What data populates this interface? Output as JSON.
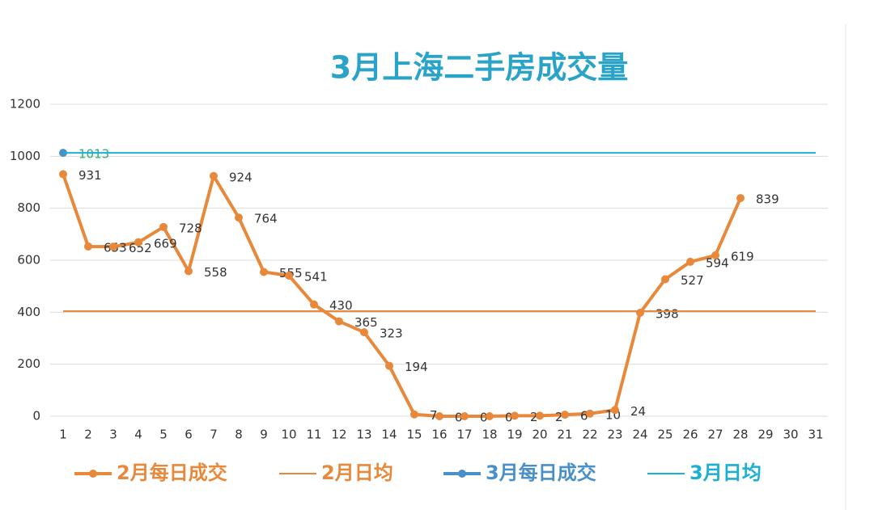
{
  "chart_data": {
    "type": "line",
    "title": "3月上海二手房成交量",
    "x": [
      1,
      2,
      3,
      4,
      5,
      6,
      7,
      8,
      9,
      10,
      11,
      12,
      13,
      14,
      15,
      16,
      17,
      18,
      19,
      20,
      21,
      22,
      23,
      24,
      25,
      26,
      27,
      28,
      29,
      30,
      31
    ],
    "series": [
      {
        "name": "2月每日成交",
        "color": "#e8883a",
        "marker": true,
        "label_color": "#333333",
        "values": [
          931,
          653,
          652,
          669,
          728,
          558,
          924,
          764,
          555,
          541,
          430,
          365,
          323,
          194,
          7,
          0,
          0,
          0,
          2,
          2,
          6,
          10,
          24,
          398,
          527,
          594,
          619,
          839,
          null,
          null,
          null
        ]
      },
      {
        "name": "2月日均",
        "color": "#e8883a",
        "value": 404
      },
      {
        "name": "3月每日成交",
        "color": "#4a90c8",
        "marker": true,
        "label_color": "#2bb070",
        "values": [
          1013,
          null,
          null,
          null,
          null,
          null,
          null,
          null,
          null,
          null,
          null,
          null,
          null,
          null,
          null,
          null,
          null,
          null,
          null,
          null,
          null,
          null,
          null,
          null,
          null,
          null,
          null,
          null,
          null,
          null,
          null
        ]
      },
      {
        "name": "3月日均",
        "color": "#1ab0d0",
        "value": 1013
      }
    ],
    "xlim": [
      1,
      31
    ],
    "ylim": [
      0,
      1200
    ],
    "yticks": [
      0,
      200,
      400,
      600,
      800,
      1000,
      1200
    ],
    "grid": true,
    "legend": "bottom"
  }
}
